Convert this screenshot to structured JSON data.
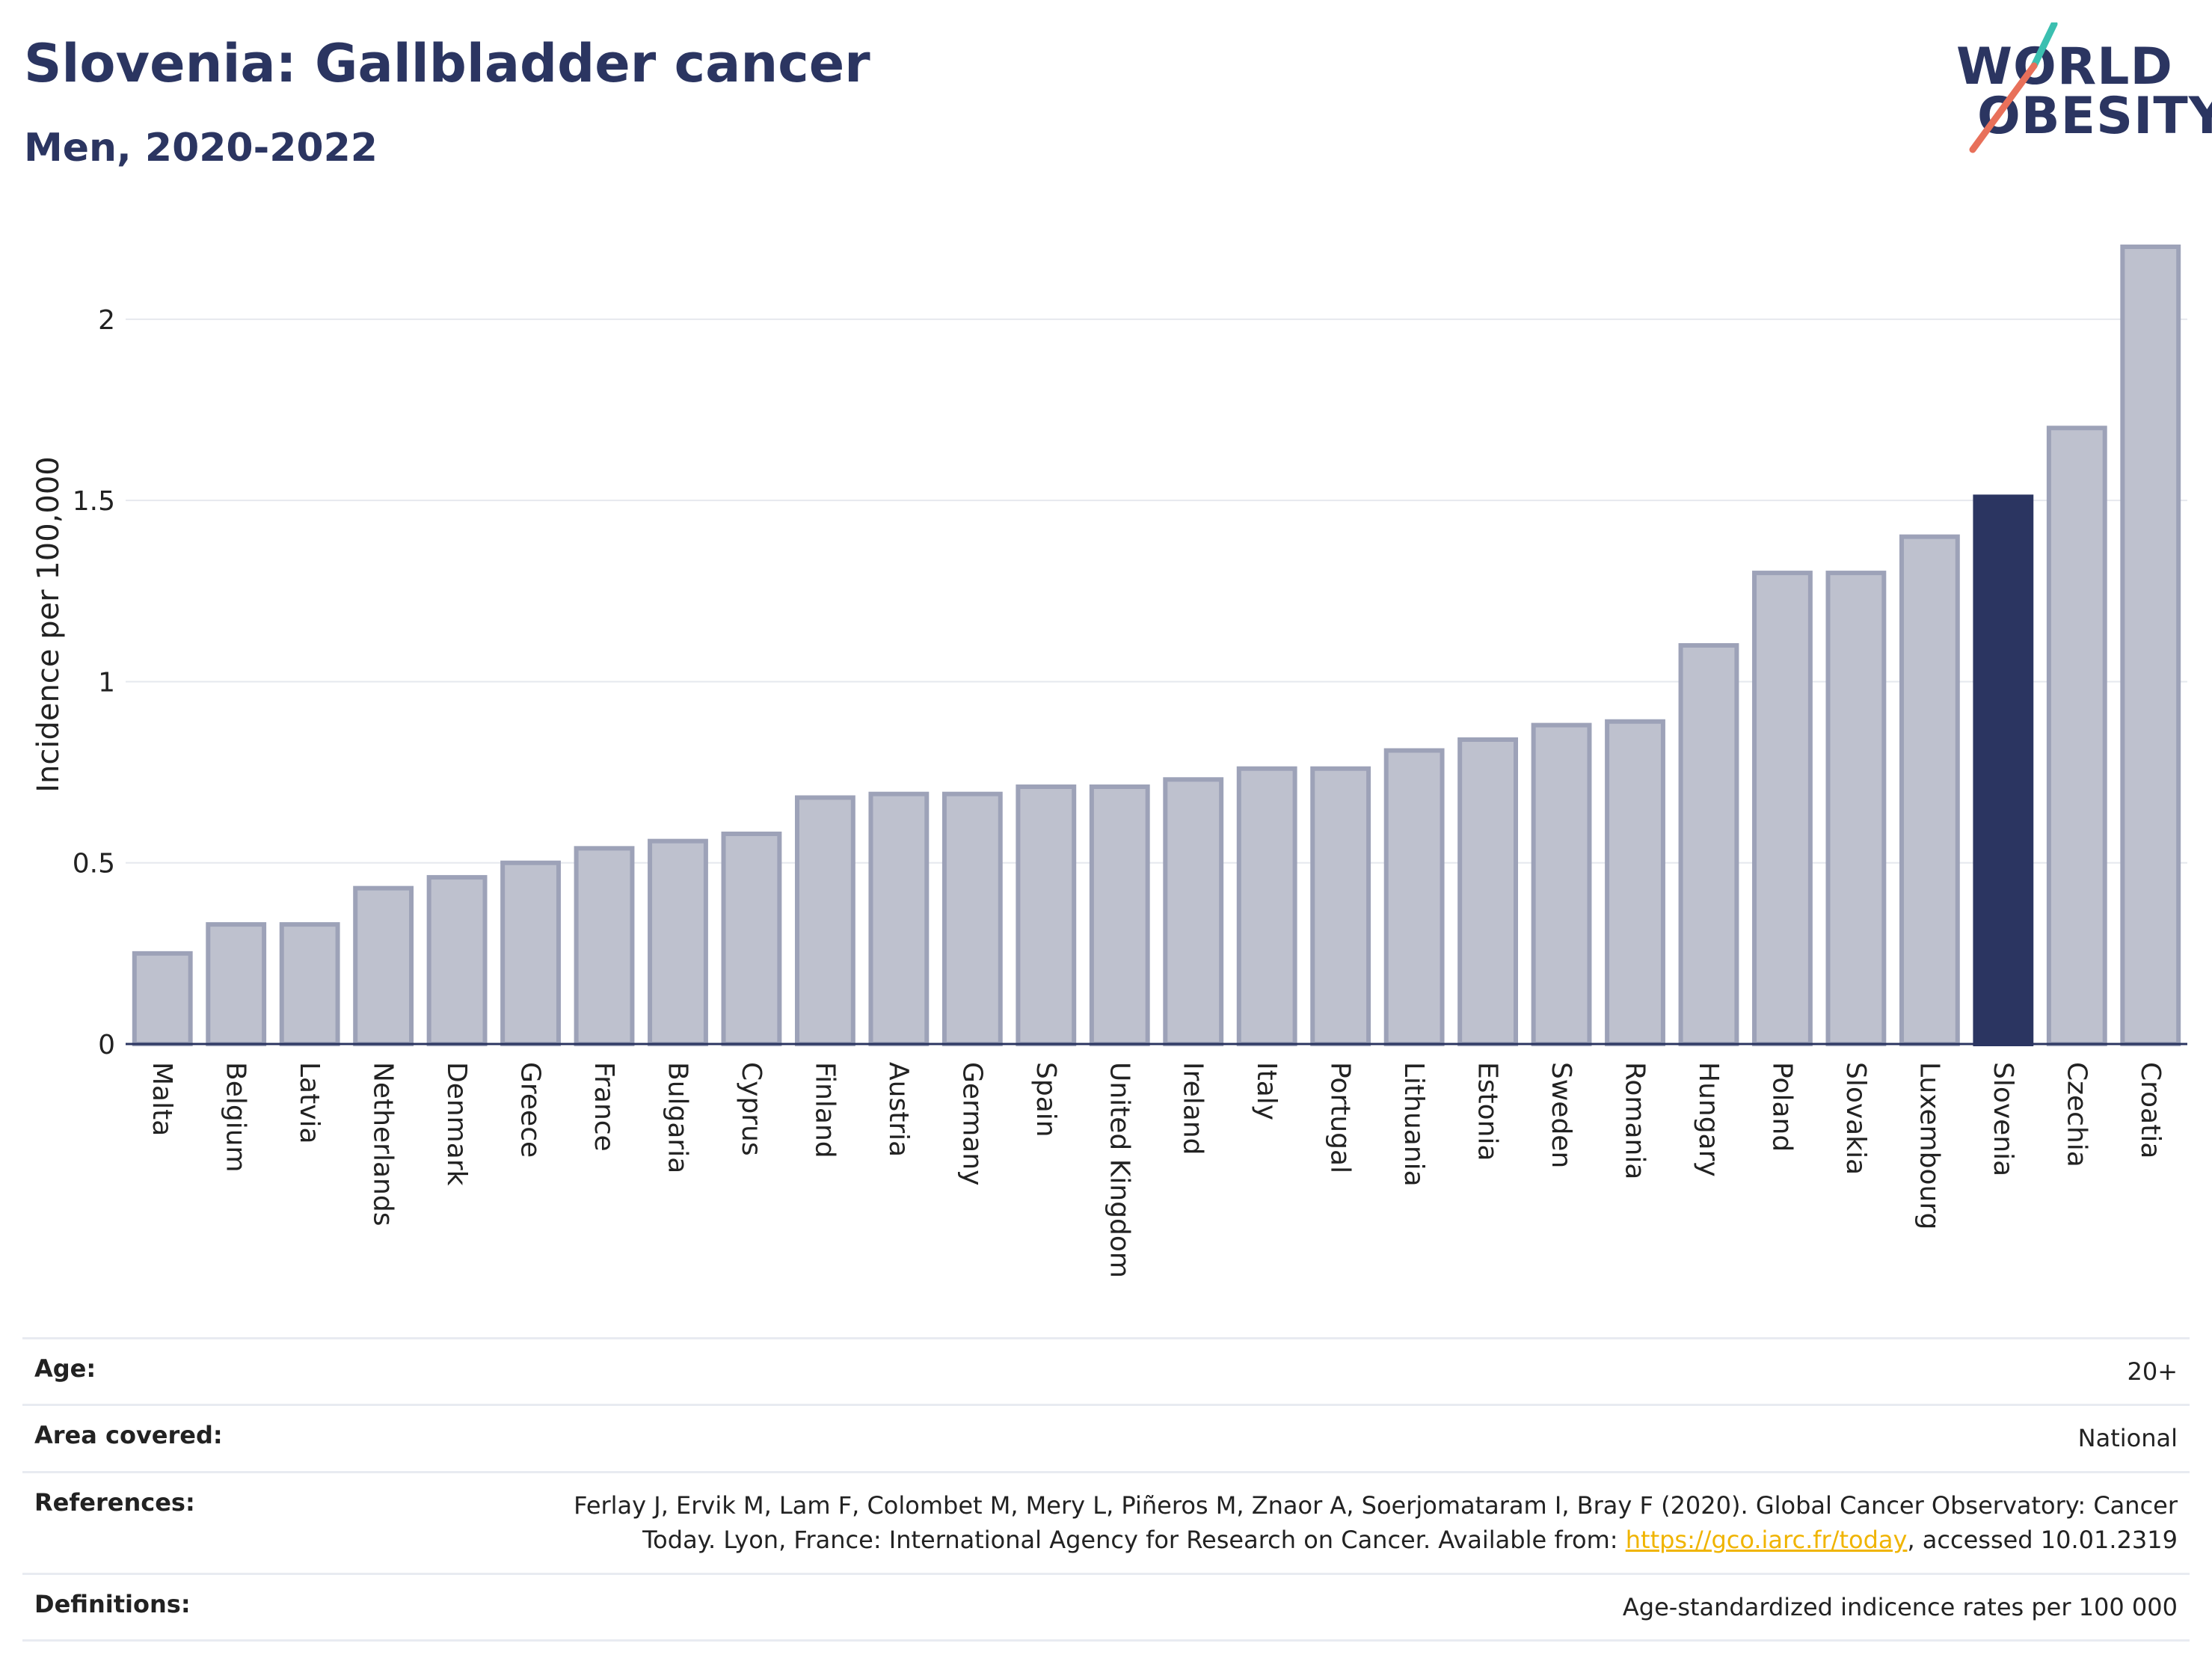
{
  "header": {
    "title": "Slovenia: Gallbladder cancer",
    "subtitle": "Men, 2020-2022"
  },
  "logo": {
    "line1": "WORLD",
    "line2": "OBESITY"
  },
  "colors": {
    "highlight": "#2b3561",
    "bar_fill": "#bec1ce",
    "bar_stroke": "#9da2b8",
    "grid": "#e6e8ee",
    "logo_teal": "#3bbfb0",
    "logo_coral": "#e8705a"
  },
  "chart_data": {
    "type": "bar",
    "ylabel": "Incidence per 100,000",
    "ylim": [
      0,
      2.2
    ],
    "yticks": [
      0,
      0.5,
      1,
      1.5,
      2
    ],
    "ytick_labels": [
      "0",
      "0.5",
      "1",
      "1.5",
      "2"
    ],
    "grid": true,
    "highlight": "Slovenia",
    "categories": [
      "Malta",
      "Belgium",
      "Latvia",
      "Netherlands",
      "Denmark",
      "Greece",
      "France",
      "Bulgaria",
      "Cyprus",
      "Finland",
      "Austria",
      "Germany",
      "Spain",
      "United Kingdom",
      "Ireland",
      "Italy",
      "Portugal",
      "Lithuania",
      "Estonia",
      "Sweden",
      "Romania",
      "Hungary",
      "Poland",
      "Slovakia",
      "Luxembourg",
      "Slovenia",
      "Czechia",
      "Croatia"
    ],
    "values": [
      0.25,
      0.33,
      0.33,
      0.43,
      0.46,
      0.5,
      0.54,
      0.56,
      0.58,
      0.68,
      0.69,
      0.69,
      0.71,
      0.71,
      0.73,
      0.76,
      0.76,
      0.81,
      0.84,
      0.88,
      0.89,
      1.1,
      1.3,
      1.3,
      1.4,
      1.51,
      1.7,
      2.2
    ]
  },
  "meta": {
    "age_label": "Age:",
    "age_value": "20+",
    "area_label": "Area covered:",
    "area_value": "National",
    "references_label": "References:",
    "references_line1": "Ferlay J, Ervik M, Lam F, Colombet M, Mery L, Piñeros M, Znaor A, Soerjomataram I, Bray F (2020). Global Cancer Observatory: Cancer",
    "references_line2_pre": "Today. Lyon, France: International Agency for Research on Cancer. Available from: ",
    "references_link": "https://gco.iarc.fr/today",
    "references_line2_post": ", accessed 10.01.2319",
    "definitions_label": "Definitions:",
    "definitions_value": "Age-standardized indicence rates per 100 000"
  }
}
